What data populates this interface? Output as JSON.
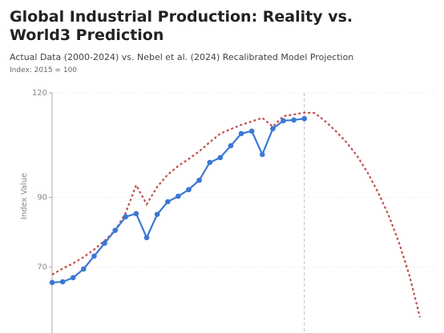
{
  "chart_data": {
    "type": "line",
    "title": "Global Industrial Production: Reality vs. World3 Prediction",
    "subtitle": "Actual Data (2000-2024) vs. Nebel et al. (2024) Recalibrated Model Projection",
    "note": "Index: 2015 = 100",
    "y_label": "Index Value",
    "xlim": [
      2000,
      2035
    ],
    "ylim": [
      51,
      120
    ],
    "yticks": [
      70,
      90,
      120
    ],
    "grid": true,
    "divider_x": 2024,
    "series": [
      {
        "color": "#c0504d",
        "style": "dotted",
        "x": [
          2000,
          2001,
          2002,
          2003,
          2004,
          2005,
          2006,
          2007,
          2008,
          2009,
          2010,
          2011,
          2012,
          2013,
          2014,
          2015,
          2016,
          2017,
          2018,
          2019,
          2020,
          2021,
          2022,
          2023,
          2024,
          2025,
          2026,
          2027,
          2028,
          2029,
          2030,
          2031,
          2032,
          2033,
          2034,
          2035
        ],
        "values": [
          67.8,
          69.5,
          71,
          72.8,
          75,
          77.5,
          80.5,
          85.5,
          93.5,
          88,
          93,
          96.5,
          99,
          101,
          103.2,
          105.8,
          108.3,
          109.6,
          110.8,
          111.8,
          112.8,
          110.3,
          113.3,
          113.8,
          114.3,
          114.2,
          111.8,
          109,
          105.8,
          102,
          97.2,
          91.5,
          85,
          77,
          67.5,
          55.5
        ]
      },
      {
        "color": "#3a78d4",
        "style": "solid",
        "markers": true,
        "x": [
          2000,
          2001,
          2002,
          2003,
          2004,
          2005,
          2006,
          2007,
          2008,
          2009,
          2010,
          2011,
          2012,
          2013,
          2014,
          2015,
          2016,
          2017,
          2018,
          2019,
          2020,
          2021,
          2022,
          2023,
          2024
        ],
        "values": [
          65.5,
          65.7,
          66.9,
          69.4,
          73.1,
          76.8,
          80.5,
          84.4,
          85.3,
          78.4,
          85.1,
          88.7,
          90.3,
          92.2,
          94.9,
          100,
          101.4,
          104.8,
          108.3,
          109,
          102.3,
          109.7,
          112,
          112.2,
          112.6
        ]
      }
    ]
  }
}
